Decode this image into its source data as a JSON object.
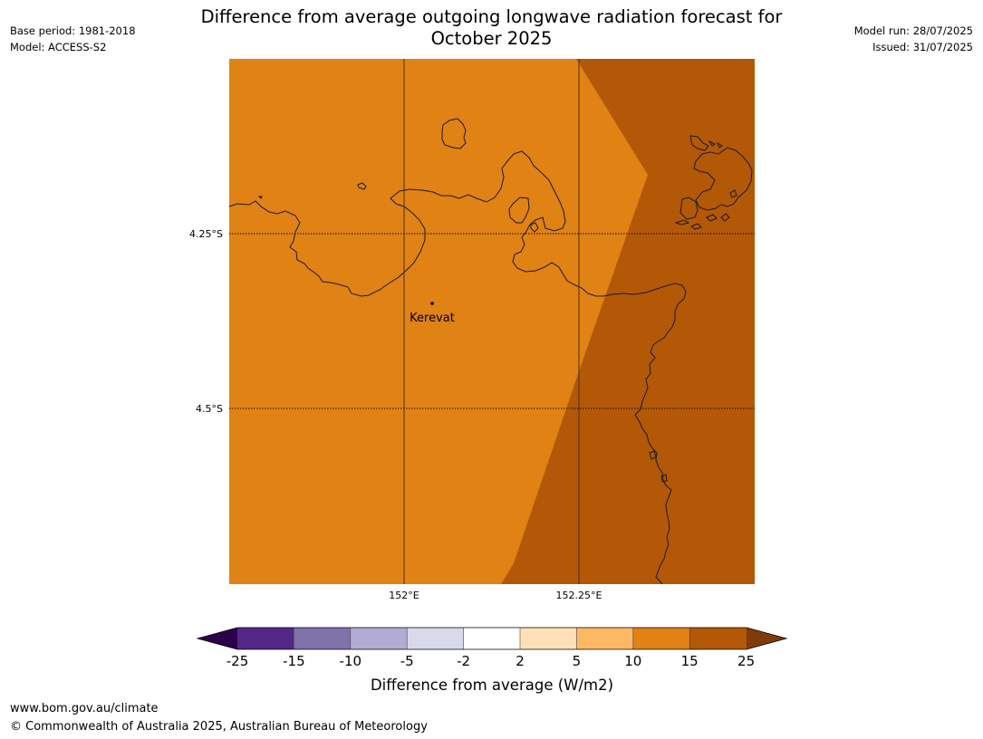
{
  "header": {
    "title_line1": "Difference from average outgoing longwave radiation forecast for",
    "title_line2": "October 2025",
    "base_period": "Base period: 1981-2018",
    "model": "Model: ACCESS-S2",
    "model_run": "Model run: 28/07/2025",
    "issued": "Issued: 31/07/2025"
  },
  "map": {
    "place_label": "Kerevat",
    "lat_labels": [
      "4.25°S",
      "4.5°S"
    ],
    "lon_labels": [
      "152°E",
      "152.25°E"
    ],
    "fill_colors": {
      "band_10_15": "#e08214",
      "band_15_25": "#b35806"
    }
  },
  "colorbar": {
    "ticks": [
      "-25",
      "-15",
      "-10",
      "-5",
      "-2",
      "2",
      "5",
      "10",
      "15",
      "25"
    ],
    "colors": [
      "#2d004b",
      "#542788",
      "#8073ac",
      "#b2abd2",
      "#d8daeb",
      "#ffffff",
      "#fee0b6",
      "#fdb863",
      "#e08214",
      "#b35806",
      "#7f3b08"
    ],
    "title": "Difference from average (W/m2)"
  },
  "footer": {
    "url": "www.bom.gov.au/climate",
    "copyright": "© Commonwealth of Australia 2025, Australian Bureau of Meteorology"
  }
}
